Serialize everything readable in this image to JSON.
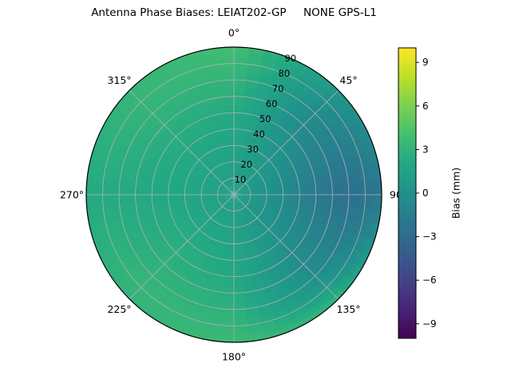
{
  "figure": {
    "background": "#ffffff"
  },
  "chart_data": {
    "type": "heatmap",
    "subtype": "polar",
    "title": "Antenna Phase Biases: LEIAT202-GP     NONE GPS-L1",
    "angular_ticks_deg": [
      0,
      45,
      90,
      135,
      180,
      225,
      270,
      315
    ],
    "angular_tick_labels": [
      "0°",
      "45°",
      "90",
      "135°",
      "180°",
      "225°",
      "270°",
      "315°"
    ],
    "radial_ticks": [
      10,
      20,
      30,
      40,
      50,
      60,
      70,
      80,
      90
    ],
    "radial_tick_labels": [
      "10",
      "20",
      "30",
      "40",
      "50",
      "60",
      "70",
      "80",
      "90"
    ],
    "radial_label_azimuth_deg": 22.5,
    "rmax": 90,
    "grid": true,
    "grid_color": "#b0b0b0",
    "boundary_color": "#000000",
    "colorbar": {
      "label": "Bias (mm)",
      "tick_values": [
        9,
        6,
        3,
        0,
        -3,
        -6,
        -9
      ],
      "tick_labels": [
        "9",
        "6",
        "3",
        "0",
        "−3",
        "−6",
        "−9"
      ],
      "vmin": -10,
      "vmax": 10,
      "colormap": "viridis",
      "colormap_stops": [
        "#440154",
        "#482475",
        "#414487",
        "#355f8d",
        "#2a788e",
        "#21918c",
        "#22a884",
        "#44bf70",
        "#7ad151",
        "#bddf26",
        "#fde725"
      ]
    },
    "azimuth_deg": [
      0,
      45,
      90,
      135,
      180,
      225,
      270,
      315
    ],
    "zenith_deg": [
      0,
      10,
      20,
      30,
      40,
      50,
      60,
      70,
      80,
      90
    ],
    "bias_mm": [
      [
        1.0,
        1.0,
        1.0,
        1.0,
        1.0,
        1.0,
        1.0,
        1.0
      ],
      [
        1.2,
        1.0,
        0.6,
        0.8,
        1.2,
        1.4,
        1.4,
        1.4
      ],
      [
        1.4,
        0.8,
        0.1,
        0.5,
        1.4,
        1.8,
        1.7,
        1.7
      ],
      [
        1.7,
        0.5,
        -0.6,
        0.2,
        1.7,
        2.1,
        1.9,
        2.0
      ],
      [
        2.0,
        0.1,
        -1.3,
        0.0,
        1.9,
        2.4,
        2.0,
        2.2
      ],
      [
        2.2,
        -0.3,
        -1.9,
        -0.3,
        2.1,
        2.6,
        2.0,
        2.4
      ],
      [
        2.6,
        -0.5,
        -2.4,
        -0.4,
        2.4,
        2.8,
        2.1,
        2.7
      ],
      [
        3.0,
        -0.4,
        -2.7,
        -0.2,
        2.7,
        3.0,
        2.1,
        3.0
      ],
      [
        3.5,
        0.0,
        -2.5,
        0.8,
        3.1,
        3.2,
        2.2,
        3.2
      ],
      [
        3.8,
        0.6,
        -2.0,
        3.0,
        3.5,
        3.0,
        2.1,
        3.1
      ]
    ]
  }
}
